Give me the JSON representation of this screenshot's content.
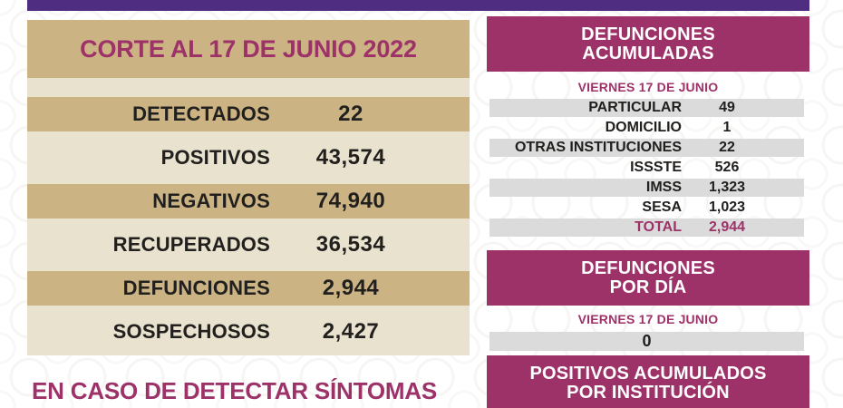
{
  "colors": {
    "top_bar_purple": "#4f2d80",
    "magenta_accent": "#9d3268",
    "tan": "#cbb384",
    "light_tan": "#e9e2cf",
    "row_gray": "#dbdbdb",
    "text_dark": "#21201e"
  },
  "left_panel": {
    "header": "CORTE AL 17 DE JUNIO 2022",
    "rows": [
      {
        "label": "DETECTADOS",
        "value": "22"
      },
      {
        "label": "POSITIVOS",
        "value": "43,574"
      },
      {
        "label": "NEGATIVOS",
        "value": "74,940"
      },
      {
        "label": "RECUPERADOS",
        "value": "36,534"
      },
      {
        "label": "DEFUNCIONES",
        "value": "2,944"
      },
      {
        "label": "SOSPECHOSOS",
        "value": "2,427"
      }
    ],
    "footer_notice": "EN CASO DE DETECTAR SÍNTOMAS"
  },
  "right_panel": {
    "deaths_accumulated": {
      "title_line1": "DEFUNCIONES",
      "title_line2": "ACUMULADAS",
      "date": "VIERNES 17 DE JUNIO",
      "rows": [
        {
          "label": "PARTICULAR",
          "value": "49"
        },
        {
          "label": "DOMICILIO",
          "value": "1"
        },
        {
          "label": "OTRAS INSTITUCIONES",
          "value": "22"
        },
        {
          "label": "ISSSTE",
          "value": "526"
        },
        {
          "label": "IMSS",
          "value": "1,323"
        },
        {
          "label": "SESA",
          "value": "1,023"
        },
        {
          "label": "TOTAL",
          "value": "2,944"
        }
      ]
    },
    "deaths_per_day": {
      "title_line1": "DEFUNCIONES",
      "title_line2": "POR DÍA",
      "date": "VIERNES 17 DE JUNIO",
      "value": "0"
    },
    "positives_by_institution": {
      "title_line1": "POSITIVOS ACUMULADOS",
      "title_line2": "POR INSTITUCIÓN"
    }
  }
}
